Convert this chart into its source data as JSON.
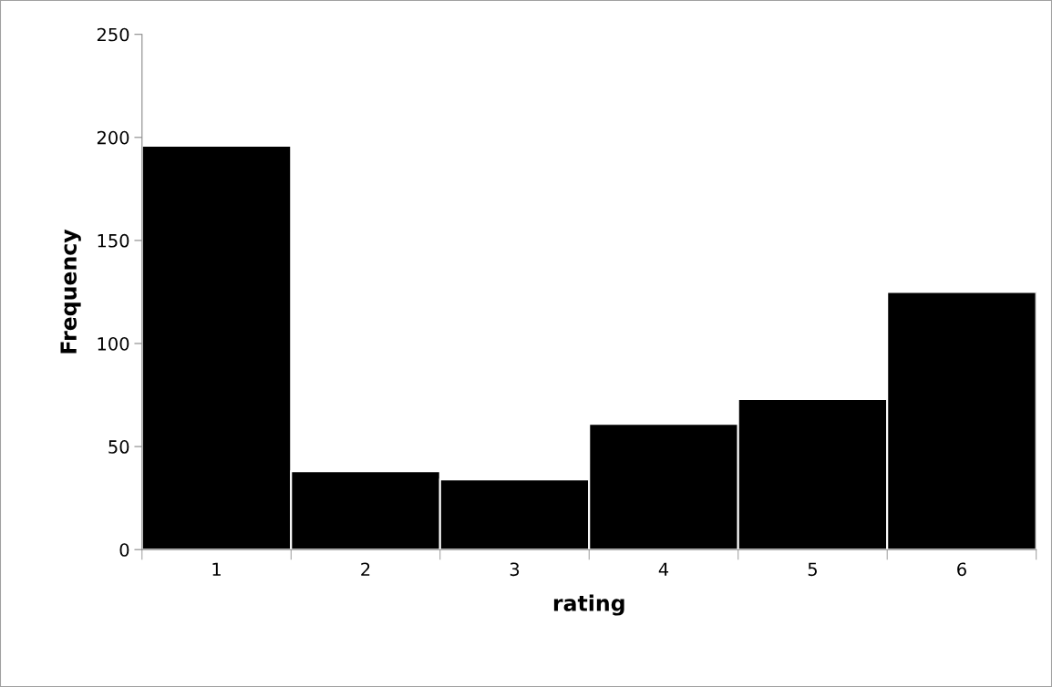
{
  "chart_data": {
    "type": "bar",
    "xlabel": "rating",
    "ylabel": "Frequency",
    "categories": [
      "1",
      "2",
      "3",
      "4",
      "5",
      "6"
    ],
    "values": [
      196,
      38,
      34,
      61,
      73,
      125
    ],
    "color": "#000000",
    "ylim": [
      0,
      250
    ],
    "yticks": [
      0,
      50,
      100,
      150,
      200,
      250
    ],
    "grid": false
  }
}
